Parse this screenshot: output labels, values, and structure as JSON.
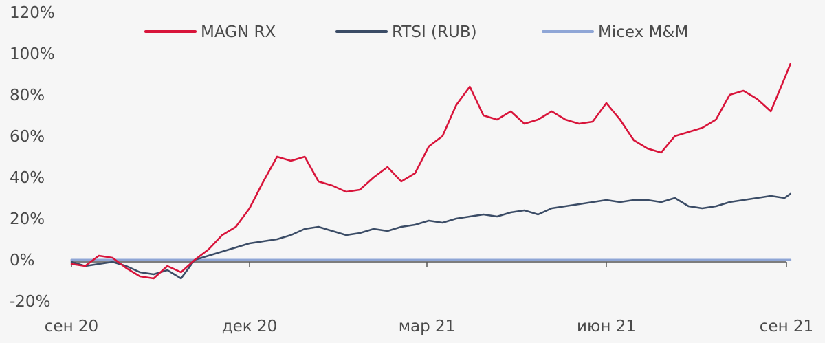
{
  "chart_data": {
    "type": "line",
    "title": "",
    "xlabel": "",
    "ylabel": "",
    "x_tick_labels": [
      "сен 20",
      "дек 20",
      "мар 21",
      "июн 21",
      "сен 21"
    ],
    "y_tick_labels": [
      "120%",
      "100%",
      "80%",
      "60%",
      "40%",
      "20%",
      "0%",
      "-20%"
    ],
    "y_ticks": [
      120,
      100,
      80,
      60,
      40,
      20,
      0,
      -20
    ],
    "ylim": [
      -20,
      120
    ],
    "grid": false,
    "legend_position": "top",
    "series": [
      {
        "name": "MAGN RX",
        "color": "#d8143a",
        "x_dates": [
          "2020-09-01",
          "2020-09-08",
          "2020-09-15",
          "2020-09-22",
          "2020-09-29",
          "2020-10-06",
          "2020-10-13",
          "2020-10-20",
          "2020-10-27",
          "2020-11-03",
          "2020-11-10",
          "2020-11-17",
          "2020-11-24",
          "2020-12-01",
          "2020-12-08",
          "2020-12-15",
          "2020-12-22",
          "2020-12-29",
          "2021-01-05",
          "2021-01-12",
          "2021-01-19",
          "2021-01-26",
          "2021-02-02",
          "2021-02-09",
          "2021-02-16",
          "2021-02-23",
          "2021-03-02",
          "2021-03-09",
          "2021-03-16",
          "2021-03-23",
          "2021-03-30",
          "2021-04-06",
          "2021-04-13",
          "2021-04-20",
          "2021-04-27",
          "2021-05-04",
          "2021-05-11",
          "2021-05-18",
          "2021-05-25",
          "2021-06-01",
          "2021-06-08",
          "2021-06-15",
          "2021-06-22",
          "2021-06-29",
          "2021-07-06",
          "2021-07-13",
          "2021-07-20",
          "2021-07-27",
          "2021-08-03",
          "2021-08-10",
          "2021-08-17",
          "2021-08-24",
          "2021-08-31",
          "2021-09-03"
        ],
        "values": [
          -2,
          -3,
          2,
          1,
          -4,
          -8,
          -9,
          -3,
          -6,
          0,
          5,
          12,
          16,
          25,
          38,
          50,
          48,
          50,
          38,
          36,
          33,
          34,
          40,
          45,
          38,
          42,
          55,
          60,
          75,
          84,
          70,
          68,
          72,
          66,
          68,
          72,
          68,
          66,
          67,
          76,
          68,
          58,
          54,
          52,
          60,
          62,
          64,
          68,
          80,
          82,
          78,
          72,
          88,
          95
        ]
      },
      {
        "name": "RTSI (RUB)",
        "color": "#3b4c66",
        "x_dates": [
          "2020-09-01",
          "2020-09-08",
          "2020-09-15",
          "2020-09-22",
          "2020-09-29",
          "2020-10-06",
          "2020-10-13",
          "2020-10-20",
          "2020-10-27",
          "2020-11-03",
          "2020-11-10",
          "2020-11-17",
          "2020-11-24",
          "2020-12-01",
          "2020-12-08",
          "2020-12-15",
          "2020-12-22",
          "2020-12-29",
          "2021-01-05",
          "2021-01-12",
          "2021-01-19",
          "2021-01-26",
          "2021-02-02",
          "2021-02-09",
          "2021-02-16",
          "2021-02-23",
          "2021-03-02",
          "2021-03-09",
          "2021-03-16",
          "2021-03-23",
          "2021-03-30",
          "2021-04-06",
          "2021-04-13",
          "2021-04-20",
          "2021-04-27",
          "2021-05-04",
          "2021-05-11",
          "2021-05-18",
          "2021-05-25",
          "2021-06-01",
          "2021-06-08",
          "2021-06-15",
          "2021-06-22",
          "2021-06-29",
          "2021-07-06",
          "2021-07-13",
          "2021-07-20",
          "2021-07-27",
          "2021-08-03",
          "2021-08-10",
          "2021-08-17",
          "2021-08-24",
          "2021-08-31",
          "2021-09-03"
        ],
        "values": [
          -1,
          -3,
          -2,
          -1,
          -3,
          -6,
          -7,
          -5,
          -9,
          0,
          2,
          4,
          6,
          8,
          9,
          10,
          12,
          15,
          16,
          14,
          12,
          13,
          15,
          14,
          16,
          17,
          19,
          18,
          20,
          21,
          22,
          21,
          23,
          24,
          22,
          25,
          26,
          27,
          28,
          29,
          28,
          29,
          29,
          28,
          30,
          26,
          25,
          26,
          28,
          29,
          30,
          31,
          30,
          32
        ]
      },
      {
        "name": "Micex M&M",
        "color": "#8fa6d6",
        "x_dates": [
          "2020-09-01",
          "2021-09-03"
        ],
        "values": [
          0,
          0
        ]
      }
    ]
  }
}
